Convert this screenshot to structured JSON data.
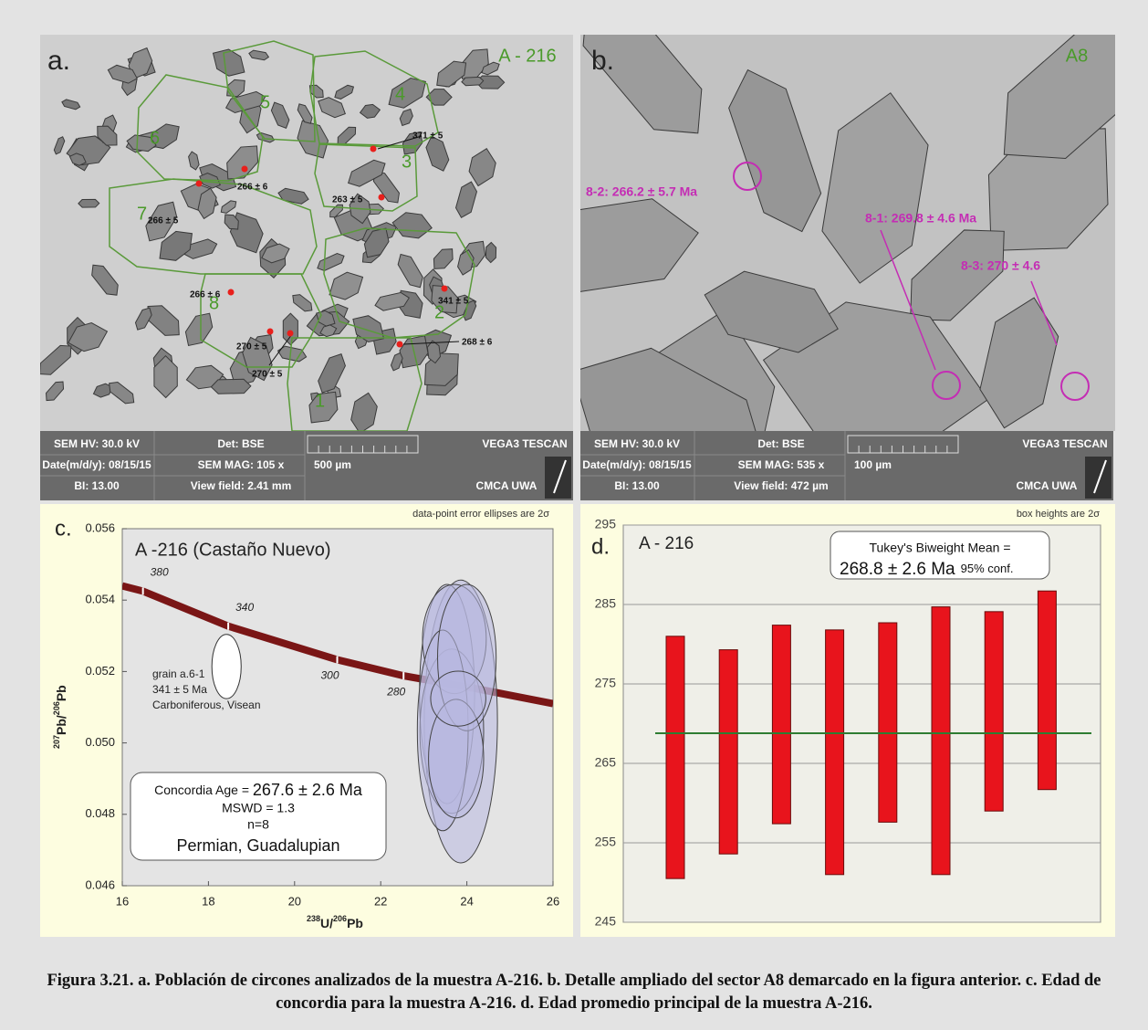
{
  "panel_a": {
    "label": "a.",
    "sample": "A - 216",
    "zones": [
      "1",
      "2",
      "3",
      "4",
      "5",
      "6",
      "7",
      "8"
    ],
    "ages": [
      "371 ± 5",
      "263 ± 5",
      "266 ± 6",
      "266 ± 5",
      "266 ± 6",
      "341 ± 5",
      "270 ± 5",
      "270 ± 5",
      "268 ± 6"
    ],
    "info_bar": [
      "SEM HV: 30.0 kV",
      "Det: BSE",
      "VEGA3 TESCAN",
      "Date(m/d/y): 08/15/15",
      "SEM MAG: 105 x",
      "500 µm",
      "CMCA UWA",
      "BI: 13.00",
      "View field: 2.41 mm"
    ]
  },
  "panel_b": {
    "label": "b.",
    "sample": "A8",
    "spots": [
      "8-2: 266.2 ± 5.7 Ma",
      "8-1: 269.8 ± 4.6 Ma",
      "8-3: 270 ± 4.6"
    ],
    "info_bar": [
      "SEM HV: 30.0 kV",
      "Det: BSE",
      "VEGA3 TESCAN",
      "Date(m/d/y): 08/15/15",
      "SEM MAG: 535 x",
      "100 µm",
      "CMCA UWA",
      "BI: 13.00",
      "View field: 472 µm"
    ]
  },
  "chart_data": [
    {
      "type": "concordia",
      "label": "c.",
      "title": "A -216 (Castaño Nuevo)",
      "note": "data-point error ellipses are 2σ",
      "xlabel": [
        "238",
        "U/",
        "206",
        "Pb"
      ],
      "ylabel": [
        "207",
        "Pb/",
        "206",
        "Pb"
      ],
      "xlim": [
        16,
        26
      ],
      "ylim": [
        0.046,
        0.056
      ],
      "xticks": [
        16,
        18,
        20,
        22,
        24,
        26
      ],
      "yticks": [
        0.046,
        0.048,
        {
          "value": 0.05,
          "label": "0.050"
        },
        0.052,
        0.054,
        0.056
      ],
      "curve": {
        "x": [
          16,
          16.48,
          18.46,
          20.99,
          22.53,
          24.3,
          26
        ],
        "y": [
          0.0544,
          0.05425,
          0.05327,
          0.05233,
          0.05188,
          0.0515,
          0.0511
        ],
        "color": "#7a1616"
      },
      "curve_ages": [
        {
          "age": 380,
          "x": 16.48,
          "y": 0.05425
        },
        {
          "age": 340,
          "x": 18.46,
          "y": 0.05327
        },
        {
          "age": 300,
          "x": 20.99,
          "y": 0.05233
        },
        {
          "age": 280,
          "x": 22.53,
          "y": 0.05188
        }
      ],
      "ellipse_color": "#b8b8e0",
      "ellipses": [
        {
          "x": 23.86,
          "y": 0.0506,
          "rx": 0.85,
          "ry": 0.00396
        },
        {
          "x": 23.54,
          "y": 0.05137,
          "rx": 0.64,
          "ry": 0.00307
        },
        {
          "x": 23.65,
          "y": 0.05033,
          "rx": 0.74,
          "ry": 0.0023
        },
        {
          "x": 23.71,
          "y": 0.05291,
          "rx": 0.74,
          "ry": 0.00153
        },
        {
          "x": 23.44,
          "y": 0.05035,
          "rx": 0.59,
          "ry": 0.00281
        },
        {
          "x": 24.0,
          "y": 0.05239,
          "rx": 0.68,
          "ry": 0.00205
        },
        {
          "x": 23.75,
          "y": 0.04956,
          "rx": 0.64,
          "ry": 0.00166
        },
        {
          "x": 23.8,
          "y": 0.05124,
          "rx": 0.64,
          "ry": 0.00077
        }
      ],
      "grain": {
        "x": 18.42,
        "y": 0.05214,
        "rx": 0.34,
        "ry": 0.0009,
        "lines": [
          "grain a.6-1",
          "341 ± 5 Ma",
          "Carboniferous, Visean"
        ]
      },
      "result": {
        "age_prefix": "Concordia Age = ",
        "age": "267.6 ± 2.6 Ma",
        "lines": [
          "MSWD = 1.3",
          "n=8",
          "Permian, Guadalupian"
        ]
      }
    },
    {
      "type": "range_bar",
      "label": "d.",
      "title": "A - 216",
      "note": "box heights are 2σ",
      "ylim": [
        245,
        295
      ],
      "yticks": [
        245,
        255,
        265,
        275,
        285,
        295
      ],
      "grid": true,
      "low": [
        250.5,
        253.6,
        257.4,
        251.0,
        257.6,
        251.0,
        259.0,
        261.7
      ],
      "high": [
        281.0,
        279.3,
        282.4,
        281.8,
        282.7,
        284.7,
        284.1,
        286.7
      ],
      "color": "#e8141c",
      "mean": 268.8,
      "mean_color": "#2e7d32",
      "annotation": {
        "line1": "Tukey's Biweight Mean =",
        "value": "268.8 ± 2.6 Ma",
        "conf": "95% conf."
      }
    }
  ],
  "caption": "Figura 3.21. a. Población de circones analizados de la muestra A-216. b. Detalle ampliado del sector A8 demarcado en la figura anterior. c. Edad de concordia para la muestra A-216. d. Edad promedio principal de la muestra A-216."
}
